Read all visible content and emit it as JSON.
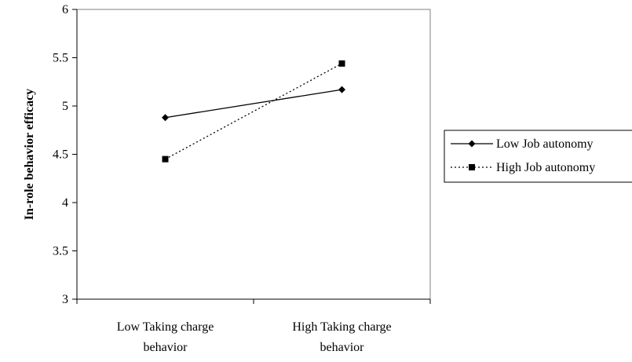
{
  "chart_data": {
    "type": "line",
    "title": "",
    "xlabel": "",
    "ylabel": "In-role behavior efficacy",
    "categories": [
      [
        "Low Taking charge",
        "behavior"
      ],
      [
        "High Taking charge",
        "behavior"
      ]
    ],
    "ylim": [
      3,
      6
    ],
    "yticks": [
      "3",
      "3.5",
      "4",
      "4.5",
      "5",
      "5.5",
      "6"
    ],
    "grid": false,
    "legend_position": "right",
    "series": [
      {
        "name": "Low Job autonomy",
        "values": [
          4.88,
          5.17
        ],
        "marker": "diamond",
        "line": "solid",
        "color": "#000000"
      },
      {
        "name": "High Job autonomy",
        "values": [
          4.45,
          5.44
        ],
        "marker": "square",
        "line": "dotted",
        "color": "#000000"
      }
    ]
  }
}
